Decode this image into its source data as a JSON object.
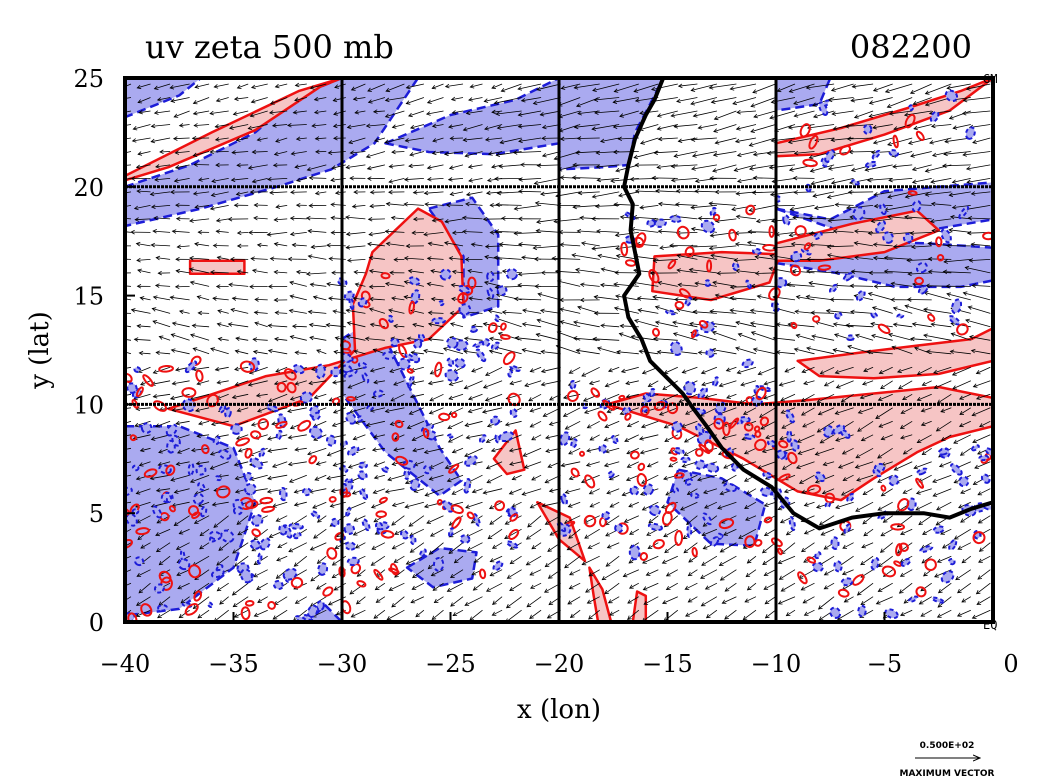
{
  "chart_data": {
    "type": "heatmap",
    "title": "uv zeta 500 mb",
    "date_label": "082200",
    "xlabel": "x (lon)",
    "ylabel": "y (lat)",
    "xlim": [
      -40,
      0
    ],
    "ylim": [
      0,
      25
    ],
    "x_ticks": [
      -40,
      -35,
      -30,
      -25,
      -20,
      -15,
      -10,
      -5,
      0
    ],
    "y_ticks": [
      0,
      5,
      10,
      15,
      20,
      25
    ],
    "grid_x": [
      -30,
      -20,
      -10
    ],
    "grid_y": [
      10,
      20
    ],
    "corner_labels": {
      "top_right": "GM",
      "bottom_right": "EQ"
    },
    "vector_key": {
      "value": "0.500E+02",
      "label": "MAXIMUM VECTOR"
    },
    "colors": {
      "positive_fill": "#f6c5c5",
      "positive_line": "#ee1111",
      "negative_fill": "#aaaaf0",
      "negative_line": "#1d1dd8",
      "coastline": "#000000"
    },
    "coastline": [
      [
        -15.2,
        25
      ],
      [
        -15.6,
        24
      ],
      [
        -16.0,
        23.3
      ],
      [
        -16.5,
        22.2
      ],
      [
        -16.8,
        21.0
      ],
      [
        -17.0,
        20.0
      ],
      [
        -16.6,
        19.2
      ],
      [
        -16.7,
        18.0
      ],
      [
        -16.5,
        17.0
      ],
      [
        -16.3,
        16.0
      ],
      [
        -17.0,
        15.0
      ],
      [
        -16.8,
        14.0
      ],
      [
        -16.2,
        13.0
      ],
      [
        -15.8,
        12.0
      ],
      [
        -15.0,
        11.2
      ],
      [
        -14.3,
        10.5
      ],
      [
        -13.8,
        9.8
      ],
      [
        -13.2,
        9.0
      ],
      [
        -12.5,
        8.0
      ],
      [
        -11.5,
        7.0
      ],
      [
        -10.2,
        6.2
      ],
      [
        -9.2,
        5.0
      ],
      [
        -8.0,
        4.3
      ],
      [
        -6.5,
        4.8
      ],
      [
        -5.0,
        5.0
      ],
      [
        -3.2,
        5.0
      ],
      [
        -2.0,
        4.8
      ],
      [
        -1.0,
        5.2
      ],
      [
        0,
        5.5
      ]
    ],
    "positive_regions": [
      [
        [
          -40,
          20.5
        ],
        [
          -36,
          22.5
        ],
        [
          -32,
          24.4
        ],
        [
          -30,
          25
        ],
        [
          -31,
          24.6
        ],
        [
          -34,
          22.6
        ],
        [
          -38,
          20.9
        ],
        [
          -40,
          20.3
        ]
      ],
      [
        [
          -28.6,
          17.0
        ],
        [
          -26.5,
          19.0
        ],
        [
          -25.4,
          18.4
        ],
        [
          -24.5,
          16.8
        ],
        [
          -24.4,
          14.5
        ],
        [
          -26.0,
          13.0
        ],
        [
          -28.0,
          12.6
        ],
        [
          -30.6,
          11.8
        ],
        [
          -33.5,
          11.3
        ],
        [
          -36.5,
          10.3
        ],
        [
          -38.0,
          9.8
        ],
        [
          -35.0,
          9.0
        ],
        [
          -31.5,
          10.3
        ],
        [
          -29.4,
          12.5
        ],
        [
          -29.5,
          14.6
        ],
        [
          -28.9,
          16.0
        ]
      ],
      [
        [
          -37.0,
          16.6
        ],
        [
          -34.5,
          16.6
        ],
        [
          -34.5,
          16.0
        ],
        [
          -37.0,
          16.0
        ]
      ],
      [
        [
          -15.6,
          16.8
        ],
        [
          -12.5,
          17.0
        ],
        [
          -9.8,
          16.9
        ],
        [
          -10.3,
          15.6
        ],
        [
          -13.0,
          14.8
        ],
        [
          -15.7,
          15.2
        ]
      ],
      [
        [
          -10.0,
          17.4
        ],
        [
          -6.5,
          18.3
        ],
        [
          -3.5,
          18.9
        ],
        [
          -2.5,
          18.0
        ],
        [
          -5.0,
          17.0
        ],
        [
          -8.0,
          16.6
        ],
        [
          -10.0,
          16.6
        ]
      ],
      [
        [
          -17.8,
          10.0
        ],
        [
          -14.5,
          9.0
        ],
        [
          -11.5,
          7.5
        ],
        [
          -9.0,
          6.0
        ],
        [
          -7.0,
          5.6
        ],
        [
          -5.5,
          6.6
        ],
        [
          -3.5,
          7.8
        ],
        [
          -2.0,
          8.5
        ],
        [
          0,
          9.0
        ],
        [
          0,
          10.3
        ],
        [
          -2.5,
          10.8
        ],
        [
          -5.5,
          10.5
        ],
        [
          -8.5,
          10.2
        ],
        [
          -11.0,
          10.0
        ],
        [
          -13.5,
          10.3
        ],
        [
          -16.0,
          10.5
        ]
      ],
      [
        [
          -9.0,
          12.0
        ],
        [
          -6.0,
          12.4
        ],
        [
          -3.5,
          12.7
        ],
        [
          -1.0,
          13.0
        ],
        [
          0,
          13.5
        ],
        [
          0,
          12.0
        ],
        [
          -2.5,
          11.4
        ],
        [
          -5.5,
          11.2
        ],
        [
          -8.0,
          11.3
        ]
      ],
      [
        [
          -10.0,
          22.0
        ],
        [
          -7.0,
          22.7
        ],
        [
          -4.0,
          23.6
        ],
        [
          -1.5,
          24.4
        ],
        [
          0,
          25.0
        ],
        [
          -2.0,
          23.5
        ],
        [
          -5.0,
          22.4
        ],
        [
          -8.0,
          21.5
        ],
        [
          -10.0,
          21.4
        ]
      ],
      [
        [
          -23.0,
          7.5
        ],
        [
          -22.0,
          8.8
        ],
        [
          -21.6,
          7.0
        ],
        [
          -22.4,
          6.8
        ]
      ],
      [
        [
          -21.0,
          5.5
        ],
        [
          -19.5,
          4.8
        ],
        [
          -18.8,
          2.8
        ],
        [
          -20.0,
          3.8
        ]
      ],
      [
        [
          -18.6,
          2.5
        ],
        [
          -18.0,
          1.5
        ],
        [
          -17.6,
          0
        ],
        [
          -18.2,
          0
        ],
        [
          -18.4,
          1.2
        ]
      ],
      [
        [
          -16.4,
          1.4
        ],
        [
          -16.0,
          1.2
        ],
        [
          -16.0,
          0
        ],
        [
          -16.6,
          0
        ]
      ]
    ],
    "negative_regions": [
      [
        [
          -40,
          20.0
        ],
        [
          -37,
          21.0
        ],
        [
          -34,
          22.5
        ],
        [
          -32,
          24.2
        ],
        [
          -30,
          25
        ],
        [
          -26.5,
          25
        ],
        [
          -27.5,
          23.5
        ],
        [
          -28.5,
          22.0
        ],
        [
          -30.5,
          20.8
        ],
        [
          -33.0,
          20.0
        ],
        [
          -36.5,
          19.0
        ],
        [
          -40,
          18.2
        ]
      ],
      [
        [
          -40,
          25
        ],
        [
          -36.5,
          25
        ],
        [
          -37.5,
          24.2
        ],
        [
          -40,
          23.2
        ]
      ],
      [
        [
          -28.0,
          22.0
        ],
        [
          -25.0,
          23.3
        ],
        [
          -22.0,
          24.0
        ],
        [
          -20.0,
          25
        ],
        [
          -17.5,
          24.6
        ],
        [
          -18.5,
          22.8
        ],
        [
          -20.0,
          22.0
        ],
        [
          -23.0,
          21.5
        ],
        [
          -26.0,
          21.6
        ]
      ],
      [
        [
          -20,
          25
        ],
        [
          -15.2,
          25
        ],
        [
          -15.8,
          23.8
        ],
        [
          -16.5,
          22.5
        ],
        [
          -16.8,
          21.0
        ],
        [
          -18.0,
          20.9
        ],
        [
          -20.0,
          20.8
        ]
      ],
      [
        [
          -26.0,
          19.0
        ],
        [
          -24.0,
          19.5
        ],
        [
          -22.8,
          17.8
        ],
        [
          -22.8,
          14.5
        ],
        [
          -24.4,
          14.0
        ],
        [
          -24.4,
          16.8
        ]
      ],
      [
        [
          -10.0,
          25
        ],
        [
          -7.5,
          25
        ],
        [
          -8.0,
          23.8
        ],
        [
          -10.0,
          23.5
        ]
      ],
      [
        [
          -40,
          9.0
        ],
        [
          -37.5,
          9.0
        ],
        [
          -35.0,
          8.0
        ],
        [
          -34.0,
          5.5
        ],
        [
          -35.0,
          2.5
        ],
        [
          -37.5,
          0.6
        ],
        [
          -40,
          0.3
        ]
      ],
      [
        [
          -30.0,
          13.0
        ],
        [
          -28.5,
          14.0
        ],
        [
          -27.0,
          11.0
        ],
        [
          -25.5,
          8.0
        ],
        [
          -24.5,
          6.5
        ],
        [
          -25.5,
          5.8
        ],
        [
          -28.0,
          7.8
        ],
        [
          -30.0,
          10.5
        ]
      ],
      [
        [
          -27.0,
          2.5
        ],
        [
          -25.5,
          3.4
        ],
        [
          -23.8,
          3.2
        ],
        [
          -24.0,
          2.0
        ],
        [
          -25.8,
          1.6
        ]
      ],
      [
        [
          -14.5,
          7.0
        ],
        [
          -12.5,
          6.6
        ],
        [
          -10.5,
          5.4
        ],
        [
          -11.0,
          3.5
        ],
        [
          -13.0,
          3.6
        ],
        [
          -15.0,
          5.5
        ]
      ],
      [
        [
          -10.0,
          19.0
        ],
        [
          -7.5,
          18.5
        ],
        [
          -5.0,
          19.8
        ],
        [
          -2.5,
          20.0
        ],
        [
          0,
          20.2
        ],
        [
          0,
          18.5
        ],
        [
          -3.0,
          18.0
        ],
        [
          -6.0,
          17.6
        ]
      ],
      [
        [
          -10.0,
          16.5
        ],
        [
          -7.0,
          16.0
        ],
        [
          -4.5,
          15.4
        ],
        [
          -1.5,
          15.4
        ],
        [
          0,
          15.7
        ],
        [
          0,
          17.2
        ],
        [
          -3.0,
          17.4
        ],
        [
          -6.5,
          17.5
        ],
        [
          -10.0,
          17.3
        ]
      ],
      [
        [
          -30.0,
          0
        ],
        [
          -31.5,
          0
        ],
        [
          -30.8,
          0.8
        ]
      ]
    ]
  }
}
